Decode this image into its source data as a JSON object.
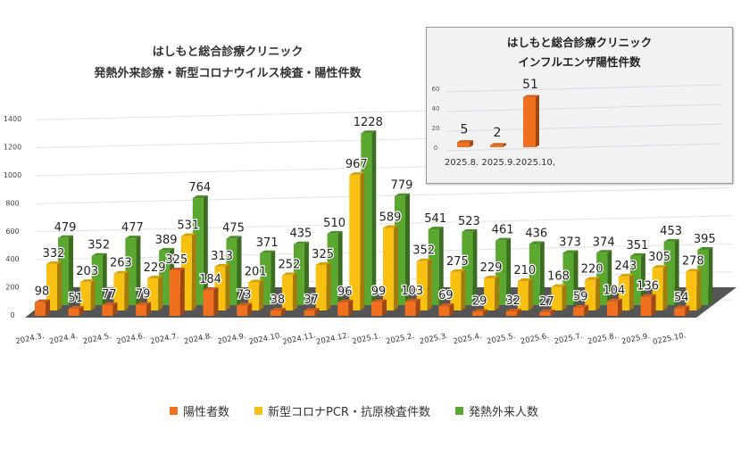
{
  "chart_data": [
    {
      "type": "bar",
      "title": [
        "はしもと総合診療クリニック",
        "発熱外来診療・新型コロナウイルス検査・陽性件数"
      ],
      "categories": [
        "2024.3.",
        "2024.4.",
        "2024.5.",
        "2024.6.",
        "2024.7.",
        "2024.8.",
        "2024.9.",
        "2024.10.",
        "2024.11.",
        "2024.12.",
        "2025.1.",
        "2025.2.",
        "2025.3.",
        "2025.4.",
        "2025.5.",
        "2025.6.",
        "2025.7.",
        "2025.8.",
        "2025.9.",
        "0225.10."
      ],
      "series": [
        {
          "name": "陽性者数",
          "color": "#f07020",
          "values": [
            98,
            51,
            77,
            79,
            325,
            184,
            73,
            38,
            37,
            96,
            99,
            103,
            69,
            29,
            32,
            27,
            59,
            104,
            136,
            54
          ]
        },
        {
          "name": "新型コロナPCR・抗原検査件数",
          "color": "#f8c010",
          "values": [
            332,
            203,
            263,
            229,
            531,
            313,
            201,
            252,
            325,
            967,
            589,
            352,
            275,
            229,
            210,
            168,
            220,
            243,
            305,
            278
          ]
        },
        {
          "name": "発熱外来人数",
          "color": "#5aa830",
          "values": [
            479,
            352,
            477,
            389,
            764,
            475,
            371,
            435,
            510,
            1228,
            779,
            541,
            523,
            461,
            436,
            373,
            374,
            351,
            453,
            395
          ]
        }
      ],
      "yticks": [
        0,
        200,
        400,
        600,
        800,
        1000,
        1200,
        1400
      ],
      "ylim": [
        0,
        1400
      ],
      "legend": "bottom",
      "style": "3d-column"
    },
    {
      "type": "bar",
      "title": [
        "はしもと総合診療クリニック",
        "インフルエンザ陽性件数"
      ],
      "categories": [
        "2025.8.",
        "2025.9.",
        "2025.10,"
      ],
      "values": [
        5,
        2,
        51
      ],
      "color": "#f07020",
      "yticks": [
        0,
        20,
        40,
        60
      ],
      "ylim": [
        0,
        60
      ]
    }
  ]
}
